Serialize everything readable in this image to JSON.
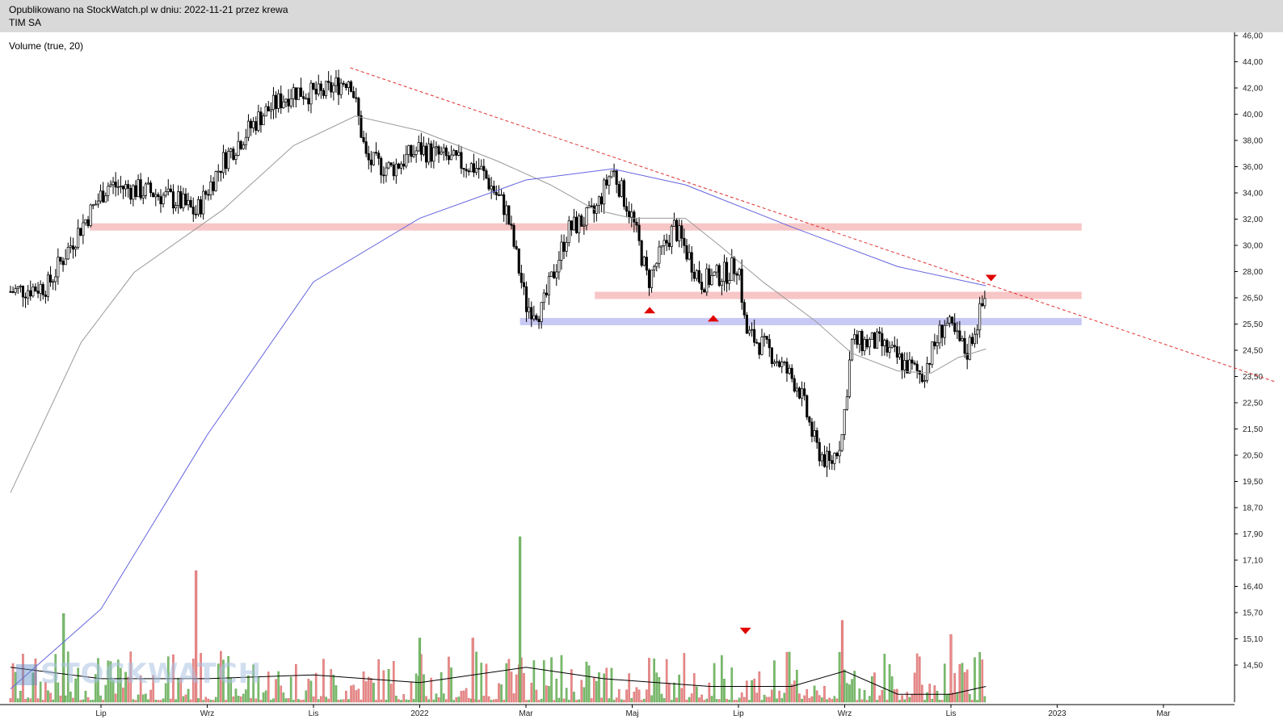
{
  "header": {
    "published": "Opublikowano na StockWatch.pl w dniu: 2022-11-21 przez krewa",
    "ticker": "TIM SA"
  },
  "indicator": {
    "label": "Volume (true, 20)"
  },
  "watermark": "STOCKWATCH",
  "colors": {
    "up": "#7dbd6e",
    "down": "#ea8b8b",
    "sma_short": "#999999",
    "sma_long": "#6464e0",
    "resistance": "#f4b3b3",
    "support": "#b7b7f2",
    "trendline": "#e03030",
    "marker": "#e00000"
  },
  "chart_data": {
    "type": "candlestick",
    "x_tick_labels": [
      "Lip",
      "Wrz",
      "Lis",
      "2022",
      "Mar",
      "Maj",
      "Lip",
      "Wrz",
      "Lis",
      "2023",
      "Mar"
    ],
    "y_tick_labels": [
      "46,00",
      "44,00",
      "42,00",
      "40,00",
      "38,00",
      "36,00",
      "34,00",
      "32,00",
      "30,00",
      "28,00",
      "26,50",
      "25,50",
      "24,50",
      "23,50",
      "22,50",
      "21,50",
      "20,50",
      "19,50",
      "18,70",
      "17,90",
      "17,10",
      "16,40",
      "15,70",
      "15,10",
      "14,50"
    ],
    "y_scale": "log",
    "price_anchors": [
      {
        "date": "2021-05-10",
        "price": 29.5
      },
      {
        "date": "2021-06-01",
        "price": 29.8
      },
      {
        "date": "2021-06-20",
        "price": 33.0
      },
      {
        "date": "2021-07-05",
        "price": 35.5
      },
      {
        "date": "2021-08-01",
        "price": 35.0
      },
      {
        "date": "2021-08-15",
        "price": 34.5
      },
      {
        "date": "2021-08-25",
        "price": 33.8
      },
      {
        "date": "2021-09-10",
        "price": 37.0
      },
      {
        "date": "2021-10-01",
        "price": 40.0
      },
      {
        "date": "2021-10-20",
        "price": 41.8
      },
      {
        "date": "2021-11-05",
        "price": 41.5
      },
      {
        "date": "2021-11-22",
        "price": 42.8
      },
      {
        "date": "2021-12-01",
        "price": 37.0
      },
      {
        "date": "2021-12-15",
        "price": 36.5
      },
      {
        "date": "2022-01-01",
        "price": 37.8
      },
      {
        "date": "2022-01-20",
        "price": 37.0
      },
      {
        "date": "2022-02-05",
        "price": 36.5
      },
      {
        "date": "2022-02-20",
        "price": 34.0
      },
      {
        "date": "2022-03-01",
        "price": 28.8
      },
      {
        "date": "2022-03-10",
        "price": 28.5
      },
      {
        "date": "2022-03-25",
        "price": 32.8
      },
      {
        "date": "2022-04-10",
        "price": 33.8
      },
      {
        "date": "2022-04-20",
        "price": 36.5
      },
      {
        "date": "2022-05-01",
        "price": 33.5
      },
      {
        "date": "2022-05-10",
        "price": 30.0
      },
      {
        "date": "2022-05-25",
        "price": 33.0
      },
      {
        "date": "2022-06-10",
        "price": 30.0
      },
      {
        "date": "2022-06-25",
        "price": 30.5
      },
      {
        "date": "2022-07-01",
        "price": 31.0
      },
      {
        "date": "2022-07-05",
        "price": 27.5
      },
      {
        "date": "2022-07-20",
        "price": 26.5
      },
      {
        "date": "2022-08-05",
        "price": 25.0
      },
      {
        "date": "2022-08-15",
        "price": 22.5
      },
      {
        "date": "2022-08-23",
        "price": 21.8
      },
      {
        "date": "2022-08-30",
        "price": 23.0
      },
      {
        "date": "2022-09-05",
        "price": 27.0
      },
      {
        "date": "2022-09-20",
        "price": 27.0
      },
      {
        "date": "2022-10-05",
        "price": 26.0
      },
      {
        "date": "2022-10-15",
        "price": 25.5
      },
      {
        "date": "2022-10-28",
        "price": 28.0
      },
      {
        "date": "2022-11-10",
        "price": 26.5
      },
      {
        "date": "2022-11-21",
        "price": 29.3
      }
    ],
    "volume_baseline": 14.5,
    "volume_spikes": [
      {
        "date": "2021-08-25",
        "value": 18.2
      },
      {
        "date": "2022-02-28",
        "value": 19.3
      },
      {
        "date": "2022-08-30",
        "value": 16.7
      },
      {
        "date": "2021-06-10",
        "value": 16.9
      },
      {
        "date": "2022-11-01",
        "value": 16.3
      },
      {
        "date": "2022-01-01",
        "value": 16.2
      },
      {
        "date": "2022-02-01",
        "value": 16.2
      }
    ],
    "sma_short_anchors": [
      {
        "date": "2021-05-10",
        "price": 20.8
      },
      {
        "date": "2021-06-20",
        "price": 27.0
      },
      {
        "date": "2021-07-20",
        "price": 30.5
      },
      {
        "date": "2021-09-10",
        "price": 34.0
      },
      {
        "date": "2021-10-20",
        "price": 38.0
      },
      {
        "date": "2021-11-25",
        "price": 40.0
      },
      {
        "date": "2022-01-01",
        "price": 39.0
      },
      {
        "date": "2022-02-15",
        "price": 37.0
      },
      {
        "date": "2022-03-15",
        "price": 35.5
      },
      {
        "date": "2022-04-10",
        "price": 34.0
      },
      {
        "date": "2022-05-01",
        "price": 33.5
      },
      {
        "date": "2022-06-01",
        "price": 33.5
      },
      {
        "date": "2022-06-20",
        "price": 32.0
      },
      {
        "date": "2022-07-15",
        "price": 30.0
      },
      {
        "date": "2022-08-15",
        "price": 28.0
      },
      {
        "date": "2022-09-05",
        "price": 26.5
      },
      {
        "date": "2022-10-01",
        "price": 25.7
      },
      {
        "date": "2022-10-20",
        "price": 25.6
      },
      {
        "date": "2022-11-05",
        "price": 26.3
      },
      {
        "date": "2022-11-21",
        "price": 26.7
      }
    ],
    "sma_long_anchors": [
      {
        "date": "2021-05-10",
        "price": 14.8
      },
      {
        "date": "2021-07-01",
        "price": 17.0
      },
      {
        "date": "2021-09-01",
        "price": 23.0
      },
      {
        "date": "2021-11-01",
        "price": 30.0
      },
      {
        "date": "2022-01-01",
        "price": 33.5
      },
      {
        "date": "2022-03-01",
        "price": 35.8
      },
      {
        "date": "2022-04-20",
        "price": 36.5
      },
      {
        "date": "2022-06-01",
        "price": 35.5
      },
      {
        "date": "2022-08-01",
        "price": 33.0
      },
      {
        "date": "2022-10-01",
        "price": 30.8
      },
      {
        "date": "2022-11-21",
        "price": 29.8
      }
    ],
    "volume_ma_anchors": [
      {
        "date": "2021-05-10",
        "value": 15.4
      },
      {
        "date": "2021-07-01",
        "value": 15.1
      },
      {
        "date": "2021-09-01",
        "value": 15.1
      },
      {
        "date": "2021-11-01",
        "value": 15.2
      },
      {
        "date": "2022-01-01",
        "value": 15.0
      },
      {
        "date": "2022-03-01",
        "value": 15.4
      },
      {
        "date": "2022-04-15",
        "value": 15.1
      },
      {
        "date": "2022-06-15",
        "value": 14.9
      },
      {
        "date": "2022-08-01",
        "value": 14.9
      },
      {
        "date": "2022-09-01",
        "value": 15.3
      },
      {
        "date": "2022-10-01",
        "value": 14.7
      },
      {
        "date": "2022-11-01",
        "value": 14.7
      },
      {
        "date": "2022-11-21",
        "value": 14.9
      }
    ],
    "horizontal_levels": [
      {
        "kind": "resistance",
        "price": 33.0,
        "from": "2021-06-25",
        "to": "2023-01-15"
      },
      {
        "kind": "resistance",
        "price": 29.3,
        "from": "2022-04-10",
        "to": "2023-01-15"
      },
      {
        "kind": "support",
        "price": 28.0,
        "from": "2022-02-28",
        "to": "2023-01-15"
      }
    ],
    "trendline": {
      "from_date": "2021-11-22",
      "from_price": 43.5,
      "to_date": "2023-05-05",
      "to_price": 25.2
    },
    "markers": [
      {
        "shape": "triangle-up",
        "date": "2022-05-11",
        "price": 28.6
      },
      {
        "shape": "triangle-up",
        "date": "2022-06-17",
        "price": 28.2
      },
      {
        "shape": "triangle-down",
        "date": "2022-11-24",
        "price": 30.2
      },
      {
        "shape": "triangle-down",
        "date": "2022-07-05",
        "value": 16.4
      }
    ]
  }
}
